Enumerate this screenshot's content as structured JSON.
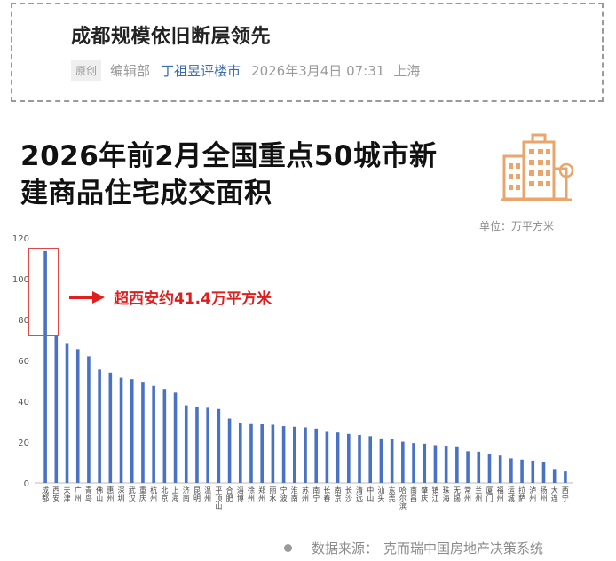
{
  "article": {
    "title": "成都规模依旧断层领先",
    "badge": "原创",
    "editor": "编辑部",
    "author": "丁祖昱评楼市",
    "date": "2026年3月4日 07:31",
    "location": "上海"
  },
  "chart_header": {
    "title_line1": "2026年前2月全国重点50城市新",
    "title_line2": "建商品住宅成交面积",
    "icon": "building-icon",
    "accent_color": "#e9a56b"
  },
  "annotation": {
    "text": "超西安约41.4万平方米",
    "color": "#e01e1e"
  },
  "source": {
    "label": "数据来源：",
    "name": "克而瑞中国房地产决策系统"
  },
  "chart_data": {
    "type": "bar",
    "unit": "单位：万平方米",
    "ylim": [
      0,
      120
    ],
    "yticks": [
      0,
      20,
      40,
      60,
      80,
      100,
      120
    ],
    "grid": false,
    "bar_color": "#4a72c4",
    "categories": [
      "成都",
      "西安",
      "天津",
      "广州",
      "青岛",
      "佛山",
      "惠州",
      "深圳",
      "武汉",
      "重庆",
      "杭州",
      "北京",
      "上海",
      "济南",
      "昆明",
      "温州",
      "平顶山",
      "合肥",
      "淄博",
      "徐州",
      "郑州",
      "丽水",
      "宁波",
      "淮南",
      "苏州",
      "南宁",
      "长春",
      "南京",
      "长沙",
      "清远",
      "中山",
      "汕头",
      "东莞",
      "哈尔滨",
      "南昌",
      "肇庆",
      "镇江",
      "珠海",
      "无锡",
      "常州",
      "兰州",
      "厦门",
      "福州",
      "运城",
      "拉萨",
      "泸州",
      "扬州",
      "大连",
      "西宁"
    ],
    "values": [
      113.5,
      72.1,
      68.5,
      65.5,
      62.0,
      55.5,
      54.0,
      51.5,
      50.8,
      49.5,
      47.5,
      46.0,
      44.2,
      38.0,
      37.2,
      36.8,
      36.2,
      31.5,
      29.3,
      28.8,
      28.7,
      28.5,
      27.8,
      27.5,
      27.2,
      26.6,
      25.0,
      24.7,
      24.0,
      23.5,
      22.9,
      21.8,
      21.5,
      20.2,
      19.5,
      19.2,
      18.5,
      17.8,
      17.5,
      15.5,
      15.3,
      14.0,
      13.4,
      12.0,
      11.4,
      10.9,
      10.4,
      6.8,
      5.6
    ]
  }
}
